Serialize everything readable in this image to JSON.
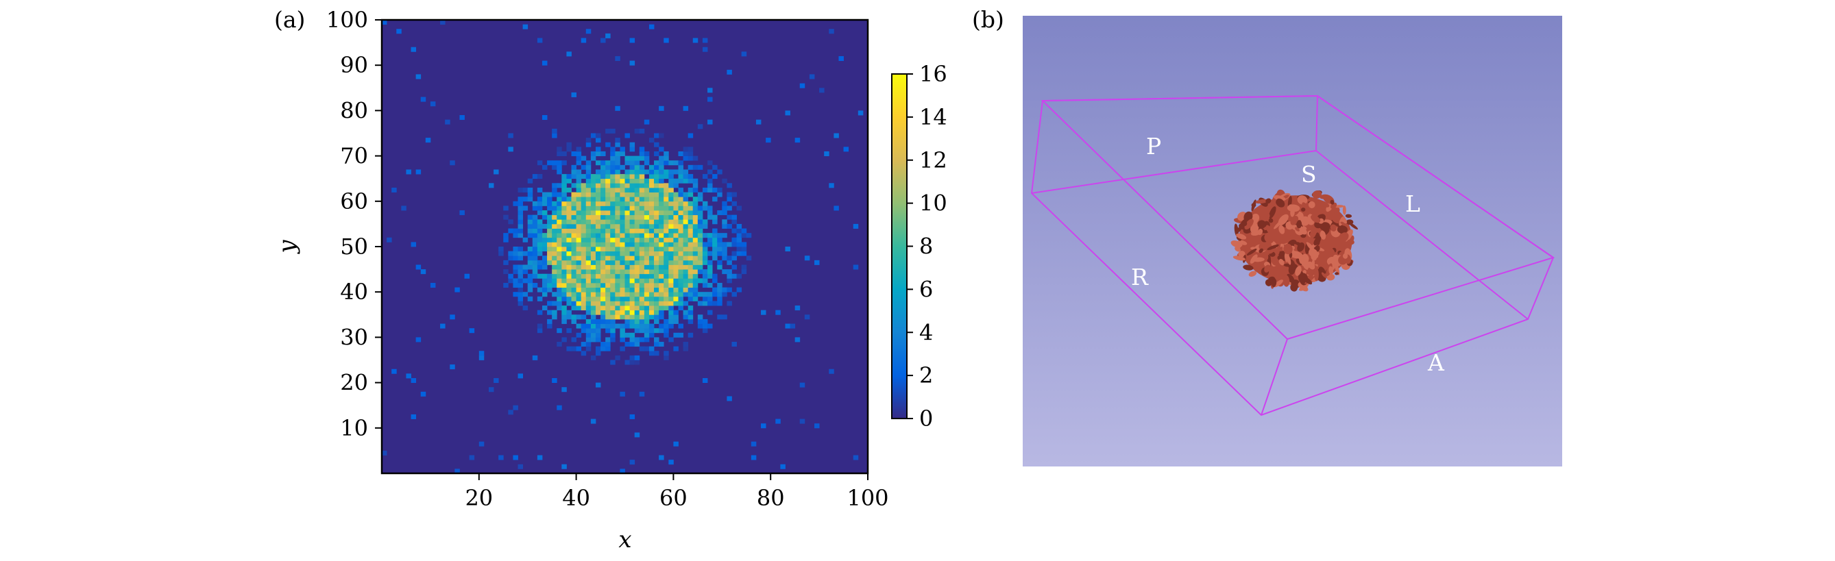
{
  "chart_data": [
    {
      "panel_label": "(a)",
      "type": "heatmap",
      "xlabel": "x",
      "ylabel": "y",
      "xlim": [
        0,
        100
      ],
      "ylim": [
        0,
        100
      ],
      "xticks": [
        20,
        40,
        60,
        80,
        100
      ],
      "yticks": [
        10,
        20,
        30,
        40,
        50,
        60,
        70,
        80,
        90,
        100
      ],
      "grid": "100x100 bins",
      "colorbar": {
        "min": 0,
        "max": 16,
        "ticks": [
          0,
          2,
          4,
          6,
          8,
          10,
          12,
          14,
          16
        ],
        "colormap": "parula",
        "colors": [
          "#352a87",
          "#0363e1",
          "#1485d4",
          "#06a7c6",
          "#38b99e",
          "#92bf73",
          "#d9ba56",
          "#fcce2e",
          "#f9fb0e"
        ]
      },
      "distribution": {
        "center": [
          50,
          50
        ],
        "core_radius": 16,
        "core_level": 10,
        "halo_radius": 26,
        "peak": 16
      }
    },
    {
      "panel_label": "(b)",
      "type": "3d-render",
      "orientation_labels": [
        "P",
        "S",
        "L",
        "R",
        "A"
      ],
      "colors": {
        "background_top": "#8085c6",
        "background_bottom": "#b8b8e3",
        "box_edges": "#cc44ee",
        "object": "#b04a3a"
      }
    }
  ]
}
